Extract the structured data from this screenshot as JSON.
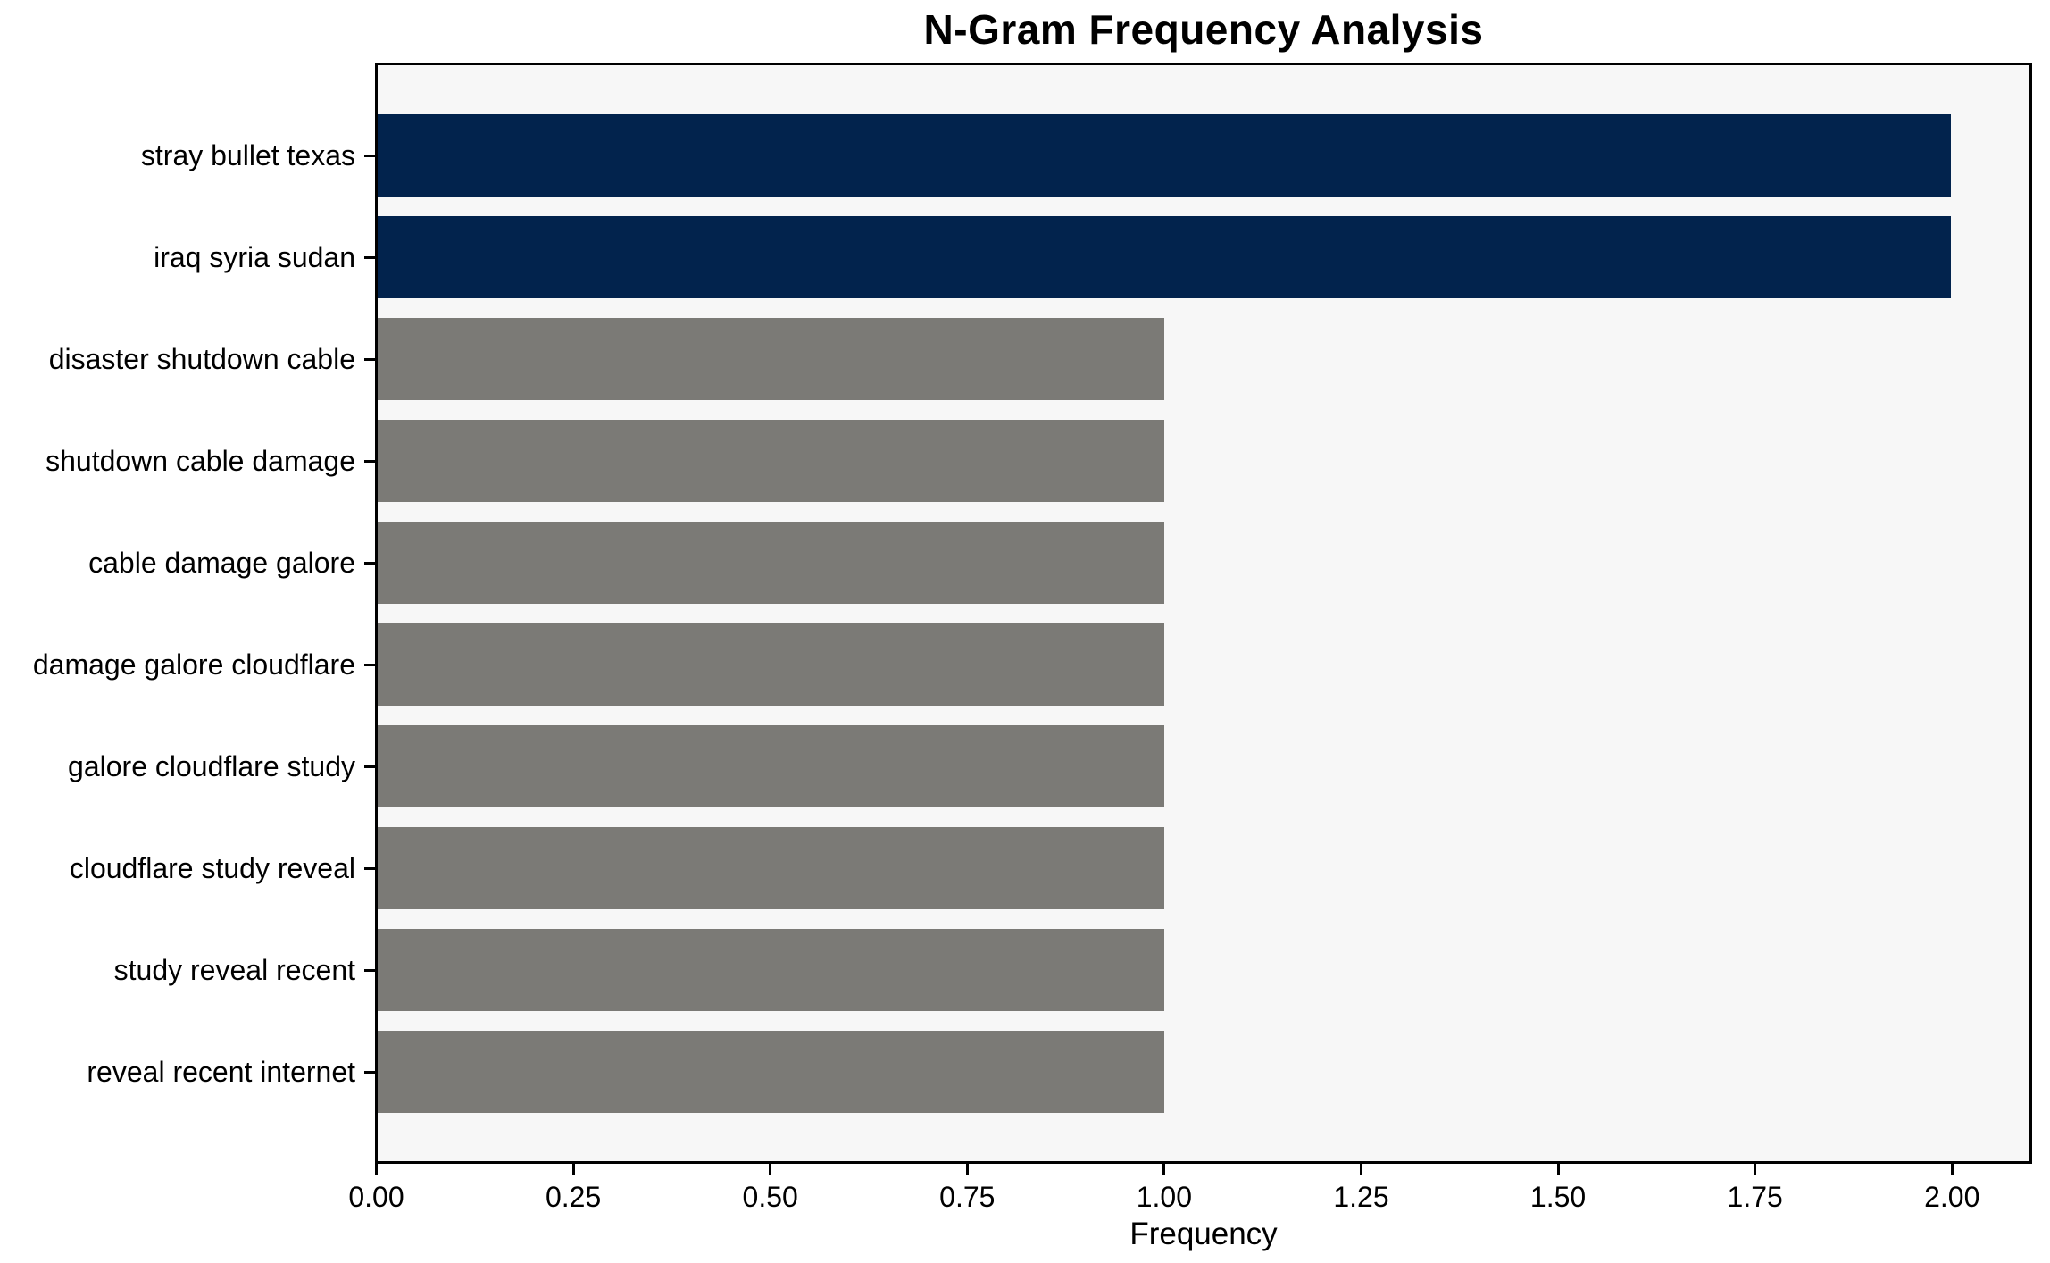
{
  "chart_data": {
    "type": "bar",
    "orientation": "horizontal",
    "title": "N-Gram Frequency Analysis",
    "xlabel": "Frequency",
    "ylabel": "",
    "categories": [
      "stray bullet texas",
      "iraq syria sudan",
      "disaster shutdown cable",
      "shutdown cable damage",
      "cable damage galore",
      "damage galore cloudflare",
      "galore cloudflare study",
      "cloudflare study reveal",
      "study reveal recent",
      "reveal recent internet"
    ],
    "values": [
      2,
      2,
      1,
      1,
      1,
      1,
      1,
      1,
      1,
      1
    ],
    "bar_colors": [
      "#02234d",
      "#02234d",
      "#7b7a76",
      "#7b7a76",
      "#7b7a76",
      "#7b7a76",
      "#7b7a76",
      "#7b7a76",
      "#7b7a76",
      "#7b7a76"
    ],
    "xlim": [
      0,
      2.1
    ],
    "xticks": [
      {
        "value": 0.0,
        "label": "0.00"
      },
      {
        "value": 0.25,
        "label": "0.25"
      },
      {
        "value": 0.5,
        "label": "0.50"
      },
      {
        "value": 0.75,
        "label": "0.75"
      },
      {
        "value": 1.0,
        "label": "1.00"
      },
      {
        "value": 1.25,
        "label": "1.25"
      },
      {
        "value": 1.5,
        "label": "1.50"
      },
      {
        "value": 1.75,
        "label": "1.75"
      },
      {
        "value": 2.0,
        "label": "2.00"
      }
    ],
    "grid": false,
    "legend_position": "none",
    "colors": {
      "highlight_bar": "#02234d",
      "default_bar": "#7b7a76",
      "plot_background": "#f7f7f7",
      "figure_background": "#ffffff",
      "axis": "#000000",
      "text": "#000000"
    }
  }
}
